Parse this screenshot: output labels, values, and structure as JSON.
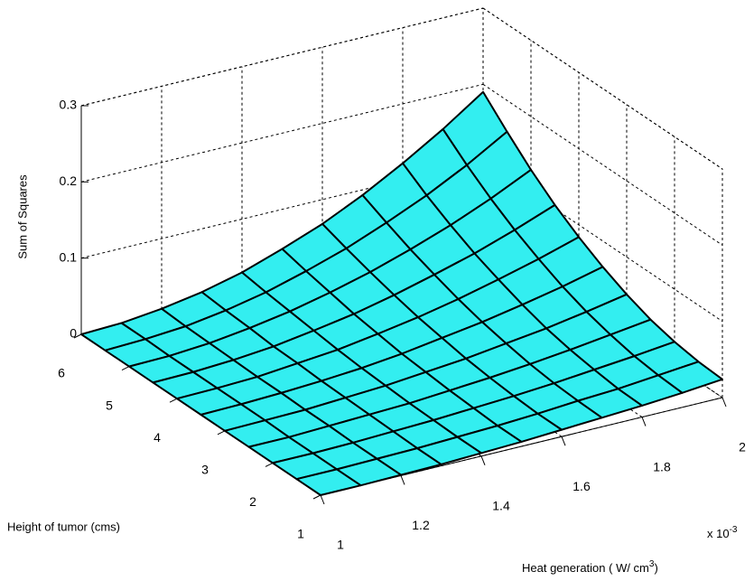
{
  "chart_data": {
    "type": "surface",
    "xlabel": "Heat generation ( W/ cm",
    "xlabel_sup": "3",
    "xlabel_end": ")",
    "ylabel": "Height of tumor (cms)",
    "zlabel": "Sum of Squares",
    "x_multiplier": "x 10",
    "x_multiplier_exp": "-3",
    "x": [
      1,
      1.1,
      1.2,
      1.3,
      1.4,
      1.5,
      1.6,
      1.7,
      1.8,
      1.9,
      2
    ],
    "y": [
      1,
      1.5,
      2,
      2.5,
      3,
      3.5,
      4,
      4.5,
      5,
      5.5,
      6
    ],
    "z": [
      [
        0,
        0,
        0.001,
        0.002,
        0.004,
        0.006,
        0.009,
        0.012,
        0.015,
        0.019,
        0.024
      ],
      [
        0,
        0,
        0.001,
        0.002,
        0.004,
        0.006,
        0.009,
        0.013,
        0.016,
        0.021,
        0.026
      ],
      [
        0,
        0,
        0.001,
        0.003,
        0.005,
        0.008,
        0.011,
        0.015,
        0.02,
        0.025,
        0.031
      ],
      [
        0,
        0,
        0.002,
        0.004,
        0.006,
        0.01,
        0.014,
        0.019,
        0.025,
        0.032,
        0.039
      ],
      [
        0,
        0.001,
        0.002,
        0.005,
        0.008,
        0.013,
        0.018,
        0.025,
        0.032,
        0.041,
        0.051
      ],
      [
        0,
        0.001,
        0.003,
        0.006,
        0.01,
        0.016,
        0.024,
        0.032,
        0.042,
        0.053,
        0.066
      ],
      [
        0,
        0.001,
        0.003,
        0.008,
        0.013,
        0.021,
        0.03,
        0.041,
        0.054,
        0.068,
        0.084
      ],
      [
        0,
        0.001,
        0.004,
        0.009,
        0.017,
        0.026,
        0.038,
        0.052,
        0.067,
        0.085,
        0.105
      ],
      [
        0,
        0.001,
        0.005,
        0.012,
        0.021,
        0.033,
        0.047,
        0.064,
        0.083,
        0.105,
        0.13
      ],
      [
        0,
        0.002,
        0.006,
        0.014,
        0.025,
        0.04,
        0.057,
        0.078,
        0.101,
        0.128,
        0.159
      ],
      [
        0,
        0.002,
        0.008,
        0.017,
        0.03,
        0.048,
        0.068,
        0.093,
        0.122,
        0.154,
        0.19
      ]
    ],
    "color": "#33eef0",
    "xlim": [
      1,
      2
    ],
    "ylim": [
      1,
      6
    ],
    "zlim": [
      0,
      0.3
    ],
    "xticks": [
      1,
      1.2,
      1.4,
      1.6,
      1.8,
      2
    ],
    "yticks": [
      1,
      2,
      3,
      4,
      5,
      6
    ],
    "zticks": [
      0,
      0.1,
      0.2,
      0.3
    ],
    "grid": true
  }
}
